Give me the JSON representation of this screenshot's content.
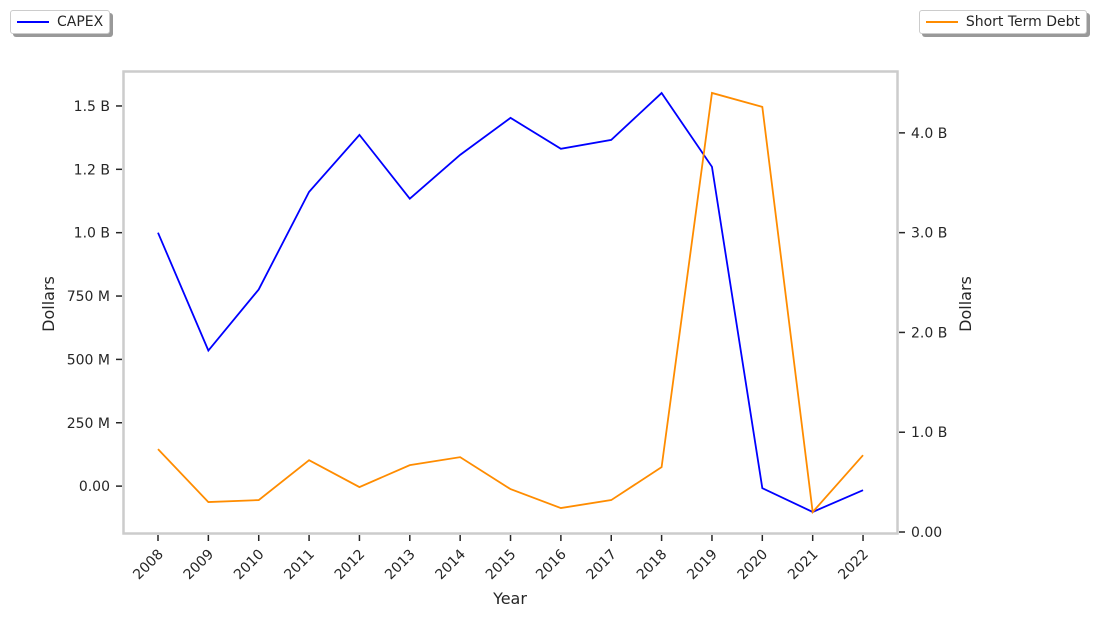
{
  "chart_data": {
    "type": "line",
    "xlabel": "Year",
    "categories": [
      "2008",
      "2009",
      "2010",
      "2011",
      "2012",
      "2013",
      "2014",
      "2015",
      "2016",
      "2017",
      "2018",
      "2019",
      "2020",
      "2021",
      "2022"
    ],
    "series": [
      {
        "name": "CAPEX",
        "axis": "left",
        "color": "#0000ff",
        "values": [
          1000000000,
          535000000,
          776000000,
          1161000000,
          1386000000,
          1134000000,
          1307000000,
          1453000000,
          1331000000,
          1366000000,
          1551000000,
          1260000000,
          -8000000,
          -102000000,
          -16000000
        ]
      },
      {
        "name": "Short Term Debt",
        "axis": "right",
        "color": "#ff8c00",
        "values": [
          830000000,
          300000000,
          320000000,
          720000000,
          450000000,
          670000000,
          750000000,
          430000000,
          240000000,
          320000000,
          650000000,
          4400000000,
          4260000000,
          200000000,
          770000000
        ]
      }
    ],
    "left_axis": {
      "label": "Dollars",
      "ylim": [
        -185000000,
        1634000000
      ],
      "ticks": [
        {
          "v": 0,
          "label": "0.00"
        },
        {
          "v": 250000000,
          "label": "250 M"
        },
        {
          "v": 500000000,
          "label": "500 M"
        },
        {
          "v": 750000000,
          "label": "750 M"
        },
        {
          "v": 1000000000,
          "label": "1.0 B"
        },
        {
          "v": 1250000000,
          "label": "1.2 B"
        },
        {
          "v": 1500000000,
          "label": "1.5 B"
        }
      ]
    },
    "right_axis": {
      "label": "Dollars",
      "ylim": [
        -10000000,
        4610000000
      ],
      "ticks": [
        {
          "v": 0,
          "label": "0.00"
        },
        {
          "v": 1000000000,
          "label": "1.0 B"
        },
        {
          "v": 2000000000,
          "label": "2.0 B"
        },
        {
          "v": 3000000000,
          "label": "3.0 B"
        },
        {
          "v": 4000000000,
          "label": "4.0 B"
        }
      ]
    },
    "grid": false,
    "legend": [
      "top-left: CAPEX",
      "top-right: Short Term Debt"
    ]
  }
}
